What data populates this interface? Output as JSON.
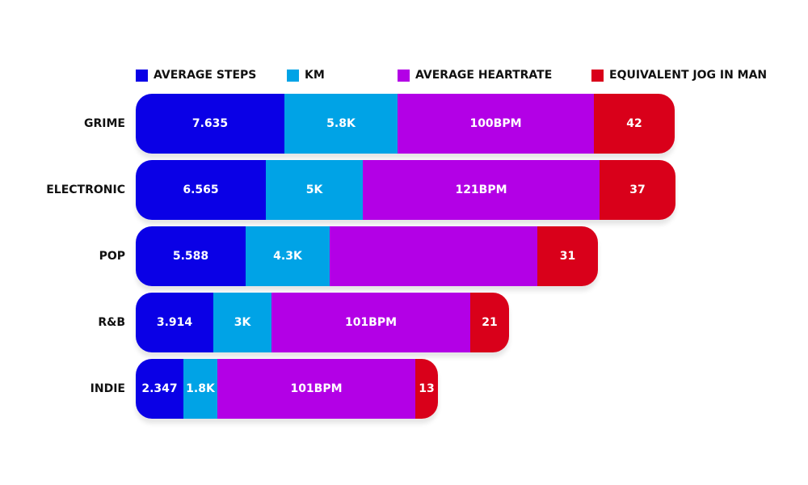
{
  "colors": {
    "steps": "#0a00e6",
    "km": "#00a3e6",
    "heartrate": "#b300e6",
    "jog": "#d9001a"
  },
  "legend": [
    {
      "label": "AVERAGE STEPS",
      "color_key": "steps"
    },
    {
      "label": "KM",
      "color_key": "km"
    },
    {
      "label": "AVERAGE HEARTRATE",
      "color_key": "heartrate"
    },
    {
      "label": "EQUIVALENT JOG IN MAN",
      "color_key": "jog"
    }
  ],
  "chart_data": {
    "type": "bar",
    "orientation": "horizontal",
    "stacked": true,
    "grid": false,
    "legend_position": "top",
    "categories": [
      "GRIME",
      "ELECTRONIC",
      "POP",
      "R&B",
      "INDIE"
    ],
    "series": [
      {
        "name": "AVERAGE STEPS",
        "values": [
          7.635,
          6.565,
          5.588,
          3.914,
          2.347
        ],
        "labels": [
          "7.635",
          "6.565",
          "5.588",
          "3.914",
          "2.347"
        ]
      },
      {
        "name": "KM",
        "values": [
          5.8,
          5,
          4.3,
          3,
          1.8
        ],
        "labels": [
          "5.8K",
          "5K",
          "4.3K",
          "3K",
          "1.8K"
        ]
      },
      {
        "name": "AVERAGE HEARTRATE",
        "values": [
          100,
          121,
          null,
          101,
          101
        ],
        "labels": [
          "100BPM",
          "121BPM",
          "",
          "101BPM",
          "101BPM"
        ]
      },
      {
        "name": "EQUIVALENT JOG IN MAN",
        "values": [
          42,
          37,
          31,
          21,
          13
        ],
        "labels": [
          "42",
          "37",
          "31",
          "21",
          "13"
        ]
      }
    ]
  }
}
